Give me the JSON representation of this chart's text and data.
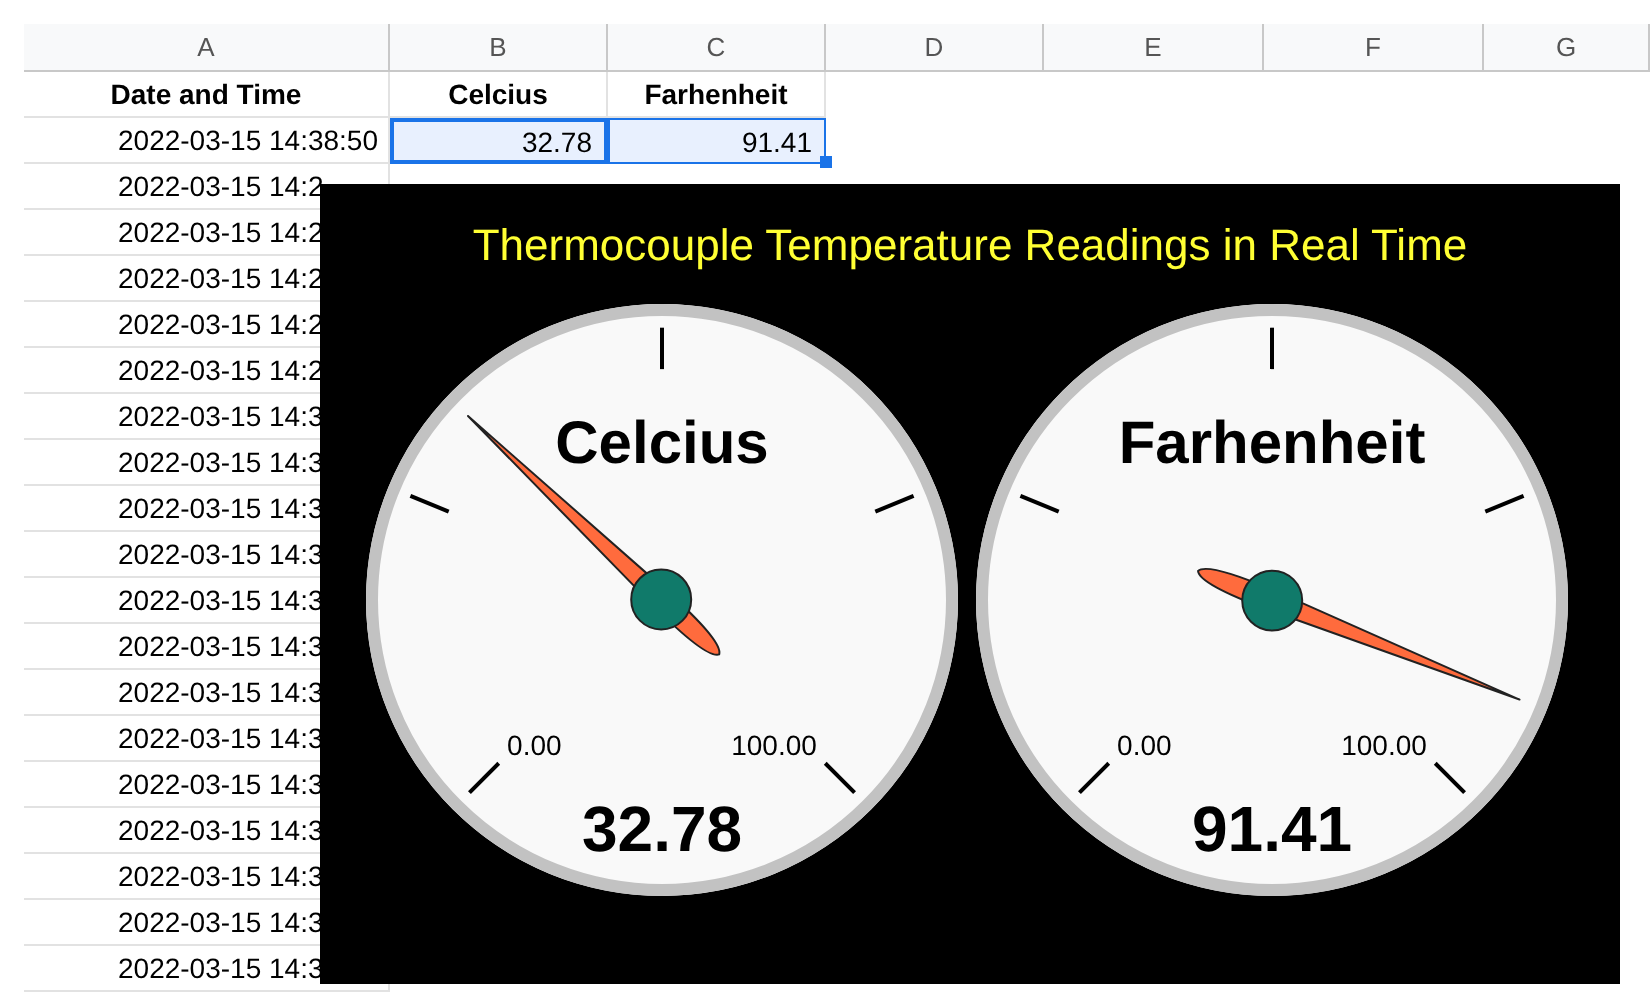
{
  "chart_data": [
    {
      "type": "other",
      "categories": [
        "A",
        "B",
        "C",
        "D",
        "E",
        "F",
        "G"
      ],
      "annotations": [
        "Date and Time",
        "Celcius",
        "Farhenheit",
        "2022-03-15 14:38:50",
        "32.78",
        "91.41",
        "2022-03-15 14:2",
        "2022-03-15 14:2",
        "2022-03-15 14:2",
        "2022-03-15 14:2",
        "2022-03-15 14:2",
        "2022-03-15 14:3",
        "2022-03-15 14:3",
        "2022-03-15 14:3",
        "2022-03-15 14:3",
        "2022-03-15 14:3",
        "2022-03-15 14:3",
        "2022-03-15 14:3",
        "2022-03-15 14:3",
        "2022-03-15 14:3",
        "2022-03-15 14:3",
        "2022-03-15 14:3",
        "2022-03-15 14:3",
        "2022-03-15 14:3"
      ]
    },
    {
      "type": "other",
      "title": "Thermocouple Temperature Readings in Real Time"
    },
    {
      "type": "other",
      "title": "Celcius",
      "values": [
        32.78
      ],
      "data_labels": true,
      "annotations": [
        "0.00",
        "100.00"
      ]
    },
    {
      "type": "other",
      "title": "Farhenheit",
      "values": [
        91.41
      ],
      "data_labels": true,
      "annotations": [
        "0.00",
        "100.00"
      ]
    }
  ]
}
